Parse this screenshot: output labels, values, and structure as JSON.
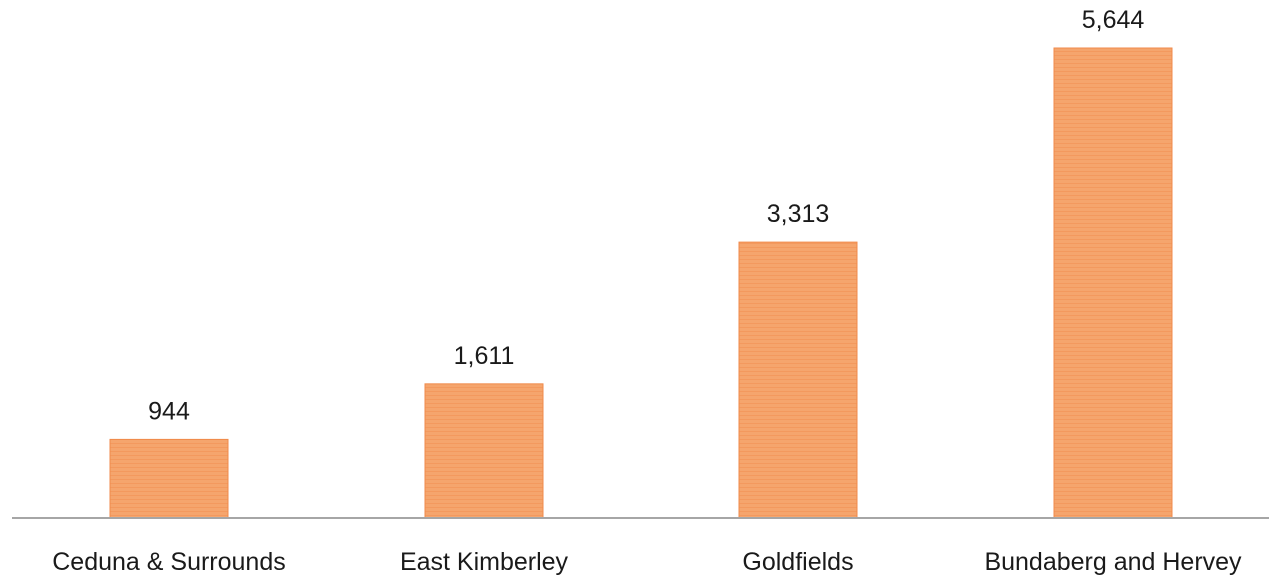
{
  "chart_data": {
    "type": "bar",
    "categories": [
      "Ceduna & Surrounds",
      "East Kimberley",
      "Goldfields",
      "Bundaberg and Hervey"
    ],
    "values": [
      944,
      1611,
      3313,
      5644
    ],
    "data_labels": [
      "944",
      "1,611",
      "3,313",
      "5,644"
    ],
    "title": "",
    "xlabel": "",
    "ylabel": "",
    "ylim": [
      0,
      5644
    ],
    "grid": false,
    "legend": "none",
    "bar_color": "#f5a56d",
    "bar_stripe_color": "#f08a4b",
    "axis_color": "#a6a6a6"
  }
}
